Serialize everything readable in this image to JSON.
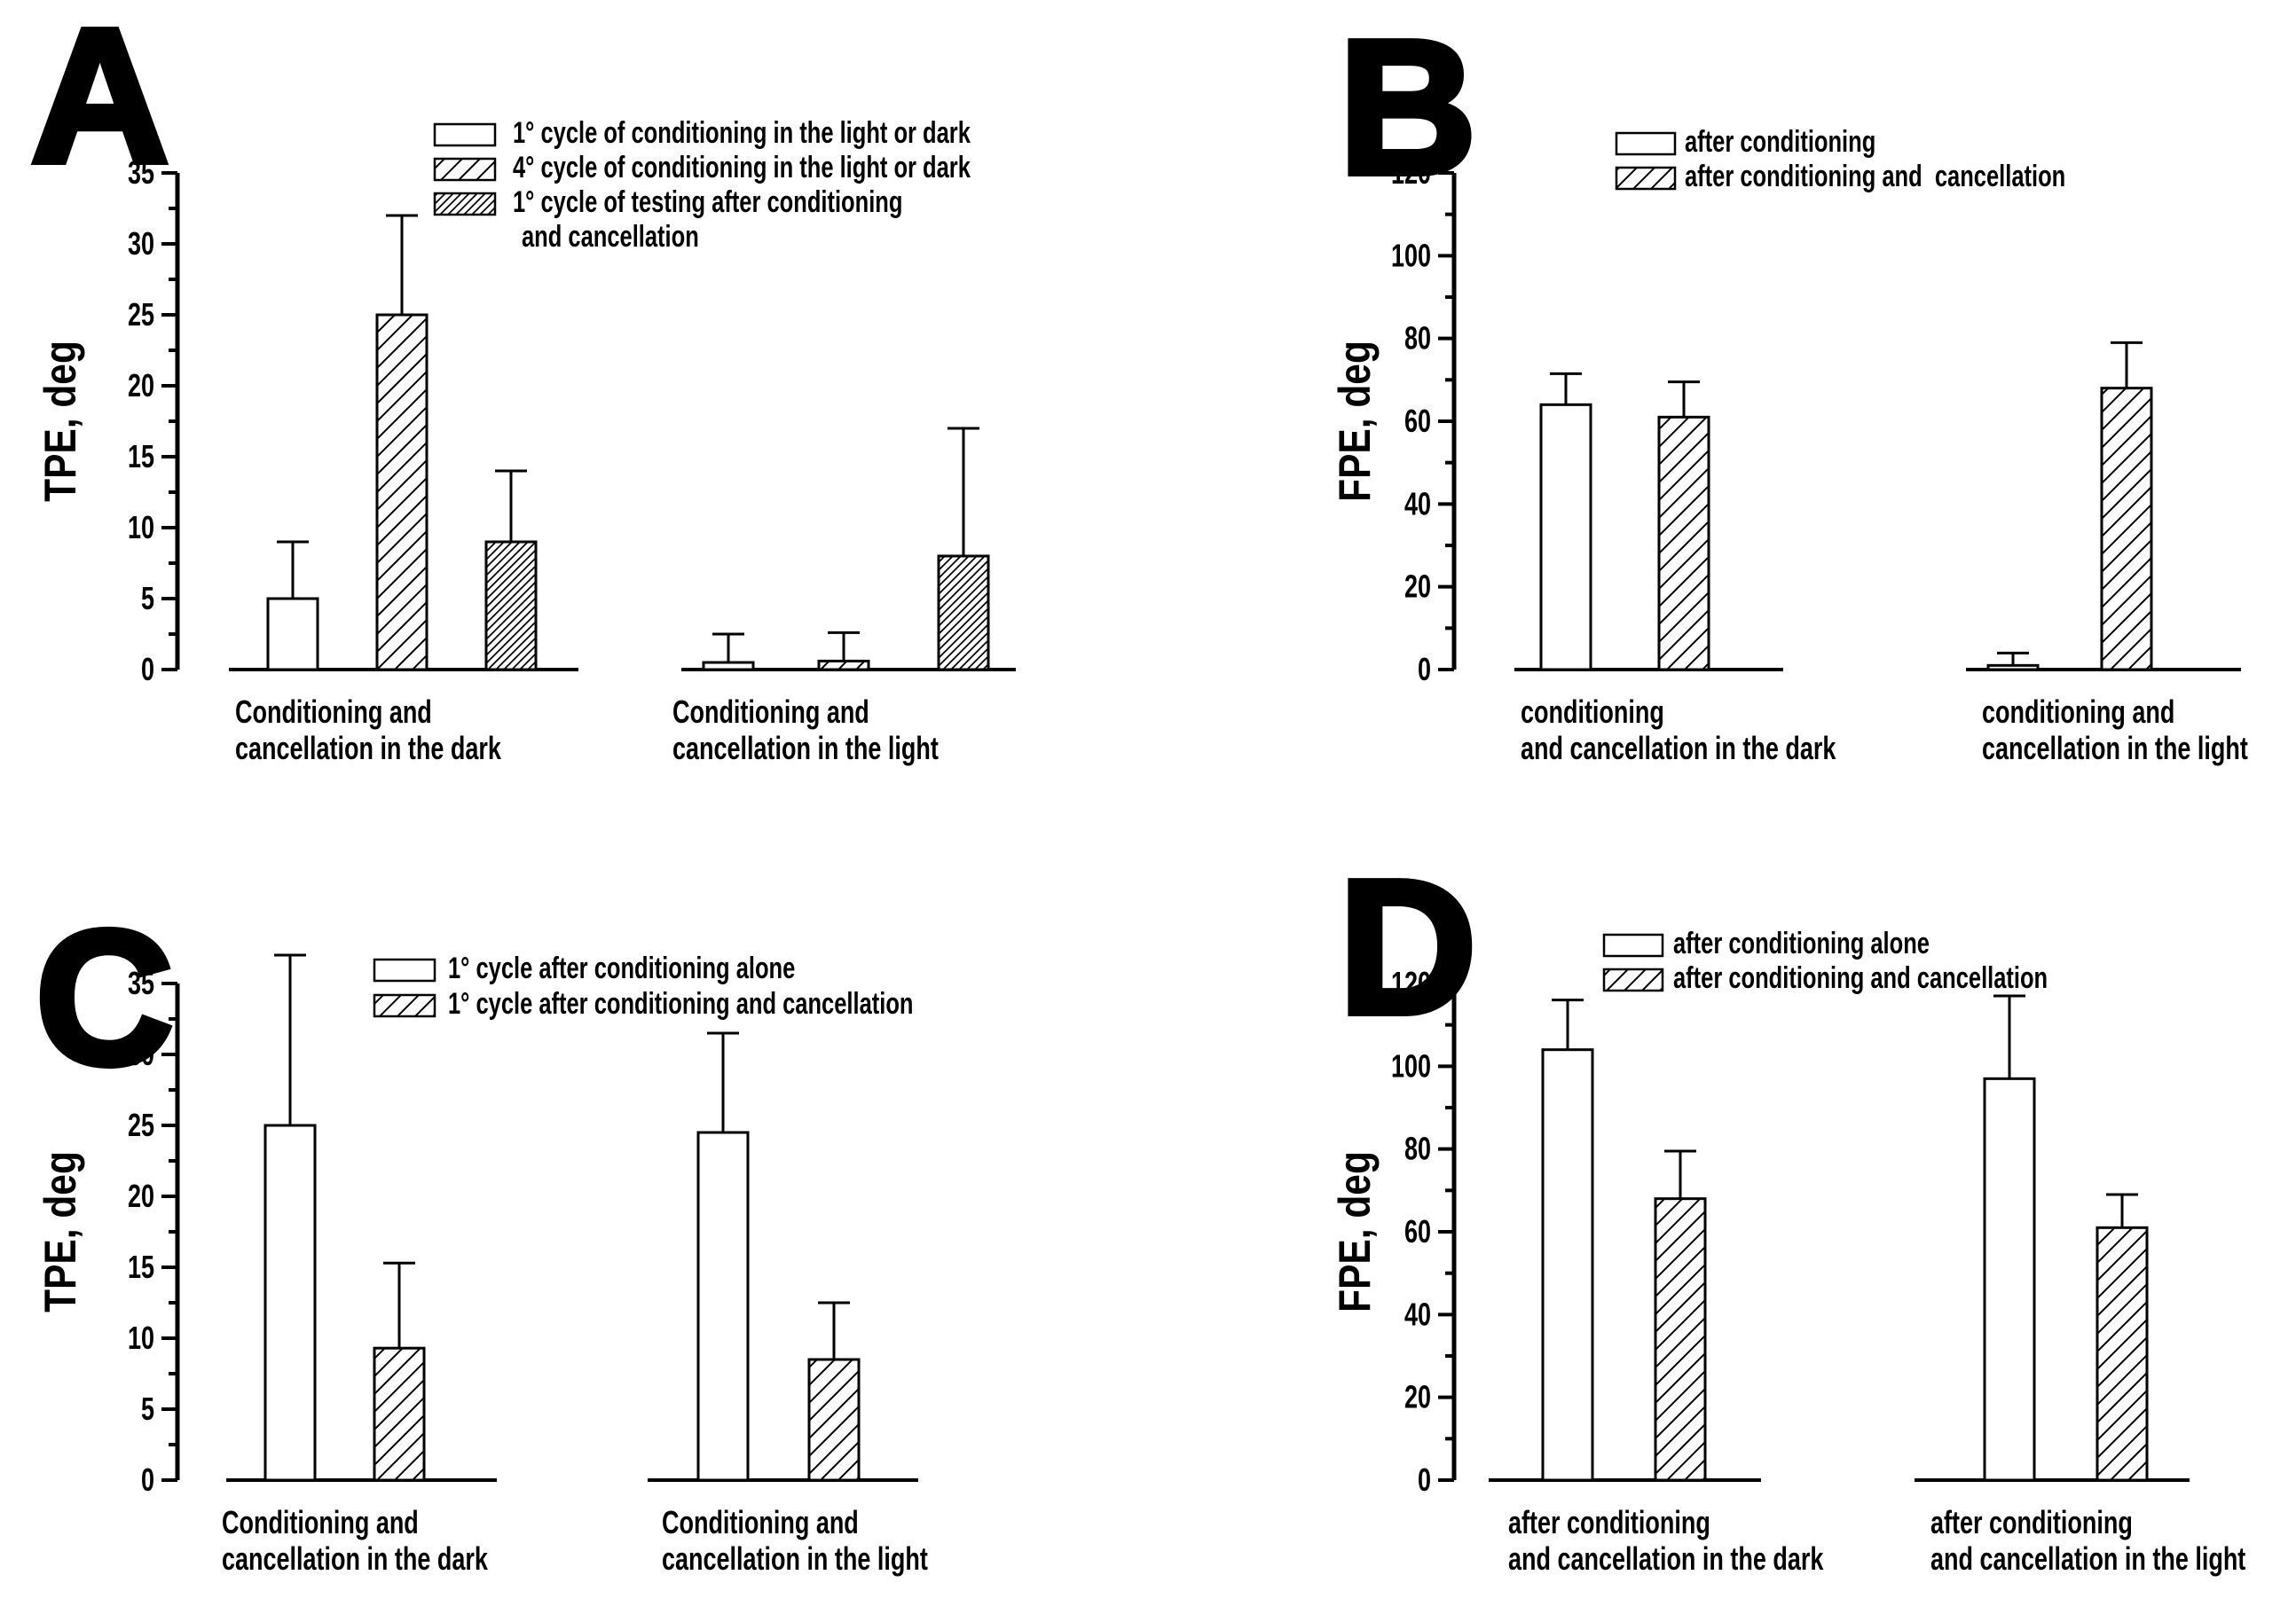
{
  "figure_title": "",
  "colors": {
    "foreground": "#000000",
    "background": "#ffffff"
  },
  "chart_data": [
    {
      "type": "bar",
      "panel_letter": "A",
      "ylabel": "TPE, deg",
      "ylim": [
        0,
        35
      ],
      "ytick_major": 5,
      "ytick_minor": 2.5,
      "grid": false,
      "legend_position": "top-right",
      "legend": [
        {
          "pattern": "plain",
          "label": "1° cycle of conditioning in the light or dark"
        },
        {
          "pattern": "hatch",
          "label": "4° cycle of conditioning in the light or dark"
        },
        {
          "pattern": "hatch-dense",
          "label": "1° cycle of testing after conditioning",
          "label_line2": "and cancellation"
        }
      ],
      "groups": [
        {
          "label_line1": "Conditioning and",
          "label_line2": "cancellation in the dark",
          "bars": [
            {
              "series": "1° cycle of conditioning in the light or dark",
              "pattern": "plain",
              "value": 5,
              "error": 4
            },
            {
              "series": "4° cycle of conditioning in the light or dark",
              "pattern": "hatch",
              "value": 25,
              "error": 7
            },
            {
              "series": "1° cycle of testing after conditioning and cancellation",
              "pattern": "hatch-dense",
              "value": 9,
              "error": 5
            }
          ]
        },
        {
          "label_line1": "Conditioning and",
          "label_line2": "cancellation in the light",
          "bars": [
            {
              "series": "1° cycle of conditioning in the light or dark",
              "pattern": "plain",
              "value": 0.5,
              "error": 2
            },
            {
              "series": "4° cycle of conditioning in the light or dark",
              "pattern": "hatch",
              "value": 0.6,
              "error": 2
            },
            {
              "series": "1° cycle of testing after conditioning and cancellation",
              "pattern": "hatch-dense",
              "value": 8,
              "error": 9
            }
          ]
        }
      ]
    },
    {
      "type": "bar",
      "panel_letter": "B",
      "ylabel": "FPE, deg",
      "ylim": [
        0,
        120
      ],
      "ytick_major": 20,
      "ytick_minor": 10,
      "grid": false,
      "legend_position": "top",
      "legend": [
        {
          "pattern": "plain",
          "label": "after conditioning"
        },
        {
          "pattern": "hatch",
          "label": "after conditioning and  cancellation"
        }
      ],
      "groups": [
        {
          "label_line1": "conditioning",
          "label_line2": "and cancellation in the dark",
          "bars": [
            {
              "series": "after conditioning",
              "pattern": "plain",
              "value": 64,
              "error": 7.5
            },
            {
              "series": "after conditioning and cancellation",
              "pattern": "hatch",
              "value": 61,
              "error": 8.5
            }
          ]
        },
        {
          "label_line1": "conditioning and",
          "label_line2": "cancellation in the light",
          "bars": [
            {
              "series": "after conditioning",
              "pattern": "plain",
              "value": 1,
              "error": 3
            },
            {
              "series": "after conditioning and cancellation",
              "pattern": "hatch",
              "value": 68,
              "error": 11
            }
          ]
        }
      ]
    },
    {
      "type": "bar",
      "panel_letter": "C",
      "ylabel": "TPE, deg",
      "ylim": [
        0,
        35
      ],
      "ytick_major": 5,
      "ytick_minor": 2.5,
      "grid": false,
      "legend_position": "top",
      "legend": [
        {
          "pattern": "plain",
          "label": "1° cycle after conditioning alone"
        },
        {
          "pattern": "hatch",
          "label": "1° cycle after conditioning and cancellation"
        }
      ],
      "groups": [
        {
          "label_line1": "Conditioning and",
          "label_line2": "cancellation in the dark",
          "bars": [
            {
              "series": "1° cycle after conditioning alone",
              "pattern": "plain",
              "value": 25,
              "error": 12
            },
            {
              "series": "1° cycle after conditioning and cancellation",
              "pattern": "hatch",
              "value": 9.3,
              "error": 6
            }
          ]
        },
        {
          "label_line1": "Conditioning and",
          "label_line2": "cancellation in the light",
          "bars": [
            {
              "series": "1° cycle after conditioning alone",
              "pattern": "plain",
              "value": 24.5,
              "error": 7
            },
            {
              "series": "1° cycle after conditioning and cancellation",
              "pattern": "hatch",
              "value": 8.5,
              "error": 4
            }
          ]
        }
      ]
    },
    {
      "type": "bar",
      "panel_letter": "D",
      "ylabel": "FPE, deg",
      "ylim": [
        0,
        120
      ],
      "ytick_major": 20,
      "ytick_minor": 10,
      "grid": false,
      "legend_position": "top",
      "legend": [
        {
          "pattern": "plain",
          "label": "after conditioning alone"
        },
        {
          "pattern": "hatch",
          "label": "after conditioning and cancellation"
        }
      ],
      "groups": [
        {
          "label_line1": "after conditioning",
          "label_line2": "and cancellation in the dark",
          "bars": [
            {
              "series": "after conditioning alone",
              "pattern": "plain",
              "value": 104,
              "error": 12
            },
            {
              "series": "after conditioning and cancellation",
              "pattern": "hatch",
              "value": 68,
              "error": 11.5
            }
          ]
        },
        {
          "label_line1": "after conditioning",
          "label_line2": "and cancellation in the light",
          "bars": [
            {
              "series": "after conditioning alone",
              "pattern": "plain",
              "value": 97,
              "error": 20
            },
            {
              "series": "after conditioning and cancellation",
              "pattern": "hatch",
              "value": 61,
              "error": 8
            }
          ]
        }
      ]
    }
  ]
}
